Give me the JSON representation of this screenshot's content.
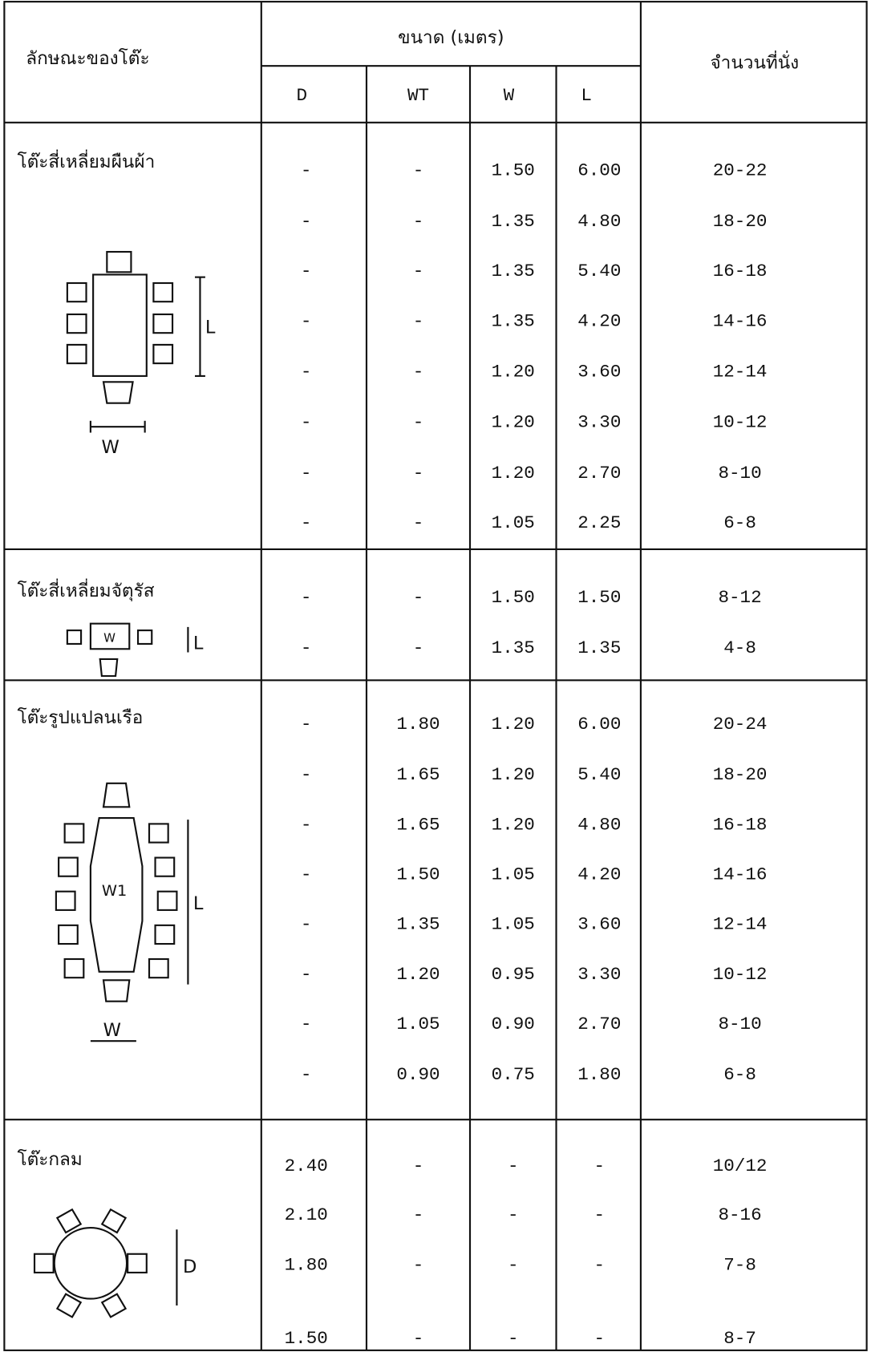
{
  "header": {
    "feature": "ลักษณะของโต๊ะ",
    "size_group": "ขนาด (เมตร)",
    "columns": [
      "D",
      "WT",
      "W",
      "L"
    ],
    "seats": "จำนวนที่นั่ง"
  },
  "sections": [
    {
      "name": "โต๊ะสี่เหลี่ยมผืนผ้า",
      "diagram_labels": [
        "L",
        "W"
      ],
      "rows": [
        [
          "-",
          "-",
          "1.50",
          "6.00",
          "20-22"
        ],
        [
          "-",
          "-",
          "1.35",
          "4.80",
          "18-20"
        ],
        [
          "-",
          "-",
          "1.35",
          "5.40",
          "16-18"
        ],
        [
          "-",
          "-",
          "1.35",
          "4.20",
          "14-16"
        ],
        [
          "-",
          "-",
          "1.20",
          "3.60",
          "12-14"
        ],
        [
          "-",
          "-",
          "1.20",
          "3.30",
          "10-12"
        ],
        [
          "-",
          "-",
          "1.20",
          "2.70",
          "8-10"
        ],
        [
          "-",
          "-",
          "1.05",
          "2.25",
          "6-8"
        ]
      ]
    },
    {
      "name": "โต๊ะสี่เหลี่ยมจัตุรัส",
      "diagram_labels": [
        "W",
        "L"
      ],
      "rows": [
        [
          "-",
          "-",
          "1.50",
          "1.50",
          "8-12"
        ],
        [
          "-",
          "-",
          "1.35",
          "1.35",
          "4-8"
        ]
      ]
    },
    {
      "name": "โต๊ะรูปแปลนเรือ",
      "diagram_labels": [
        "W1",
        "L",
        "W"
      ],
      "rows": [
        [
          "-",
          "1.80",
          "1.20",
          "6.00",
          "20-24"
        ],
        [
          "-",
          "1.65",
          "1.20",
          "5.40",
          "18-20"
        ],
        [
          "-",
          "1.65",
          "1.20",
          "4.80",
          "16-18"
        ],
        [
          "-",
          "1.50",
          "1.05",
          "4.20",
          "14-16"
        ],
        [
          "-",
          "1.35",
          "1.05",
          "3.60",
          "12-14"
        ],
        [
          "-",
          "1.20",
          "0.95",
          "3.30",
          "10-12"
        ],
        [
          "-",
          "1.05",
          "0.90",
          "2.70",
          "8-10"
        ],
        [
          "-",
          "0.90",
          "0.75",
          "1.80",
          "6-8"
        ]
      ]
    },
    {
      "name": "โต๊ะกลม",
      "diagram_labels": [
        "D"
      ],
      "rows": [
        [
          "2.40",
          "-",
          "-",
          "-",
          "10/12"
        ],
        [
          "2.10",
          "-",
          "-",
          "-",
          "8-16"
        ],
        [
          "1.80",
          "-",
          "-",
          "-",
          "7-8"
        ],
        [
          "1.50",
          "-",
          "-",
          "-",
          "8-7"
        ]
      ]
    }
  ]
}
